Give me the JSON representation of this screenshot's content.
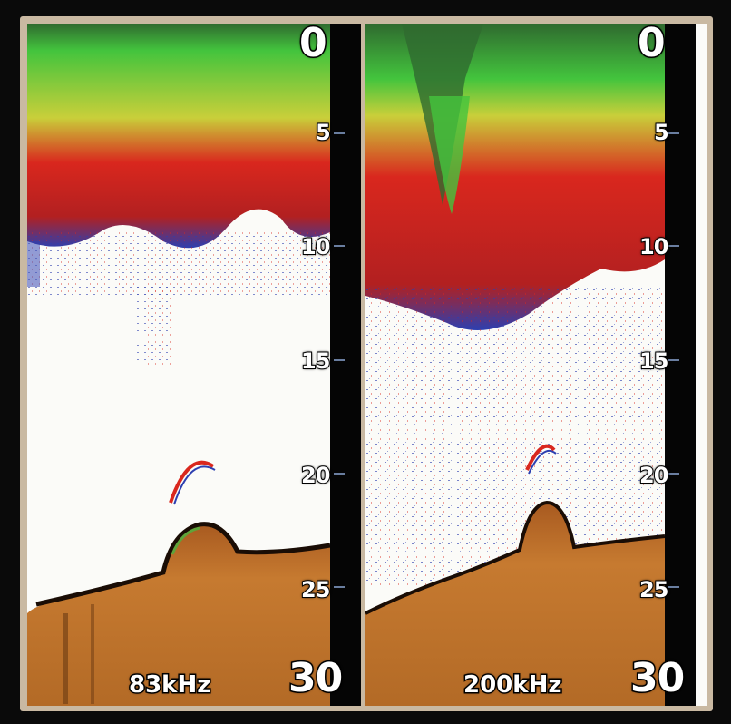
{
  "window": {
    "title": ""
  },
  "colors": {
    "surface_clutter_dark": "#2f6a2f",
    "surface_clutter_green": "#43c43d",
    "surface_clutter_yellow": "#c9cf3a",
    "thermocline_red": "#d9271e",
    "scatter_blue": "#2d3fb0",
    "background_white": "#fbfbf8",
    "bottom_brown": "#b36a26",
    "depth_scale_black": "#050505"
  },
  "panes": [
    {
      "frequency": "83kHz",
      "depth_labels": [
        "0",
        "5",
        "10",
        "15",
        "20",
        "25",
        "30"
      ]
    },
    {
      "frequency": "200kHz",
      "depth_labels": [
        "0",
        "5",
        "10",
        "15",
        "20",
        "25",
        "30"
      ]
    }
  ],
  "icons": [
    "sonar-bottom-echo-icon",
    "fish-arch-icon"
  ]
}
